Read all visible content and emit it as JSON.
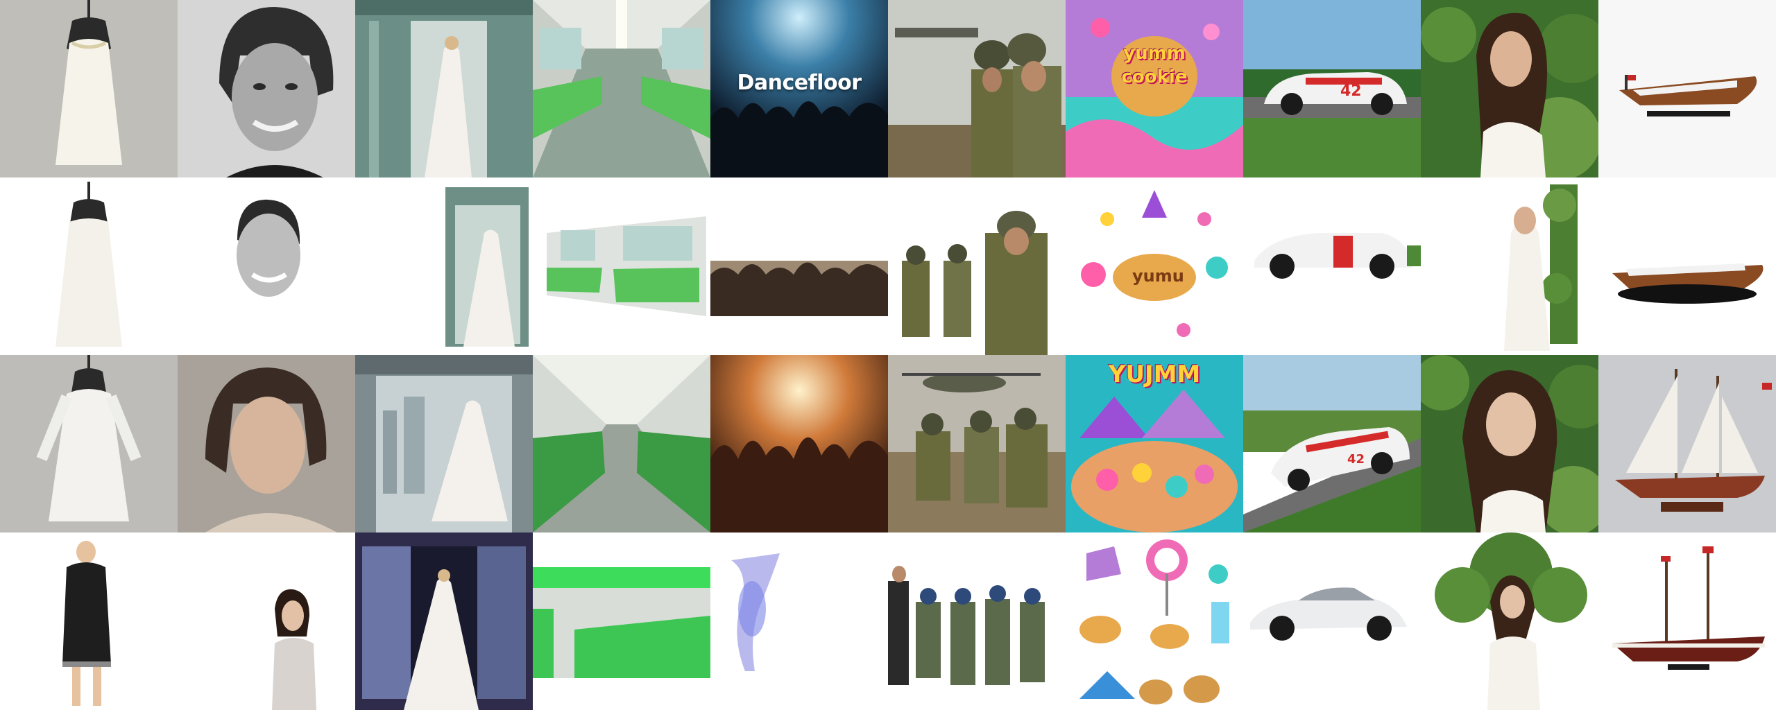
{
  "grid": {
    "rows": 4,
    "columns": 10
  },
  "overlay_text": {
    "dancefloor": "Dancefloor",
    "cookie_line1": "yumm",
    "cookie_line2": "cookie",
    "cookie_plain": "yumu",
    "candy_banner": "YUJMM",
    "car_number": "42",
    "car_number_small": "42"
  },
  "colors": {
    "train_green": "#57c35a",
    "candy_pink": "#f06bb5",
    "sky_blue": "#3a8fd9",
    "olive": "#6a6b3d",
    "boat_wood": "#8a4a22"
  }
}
